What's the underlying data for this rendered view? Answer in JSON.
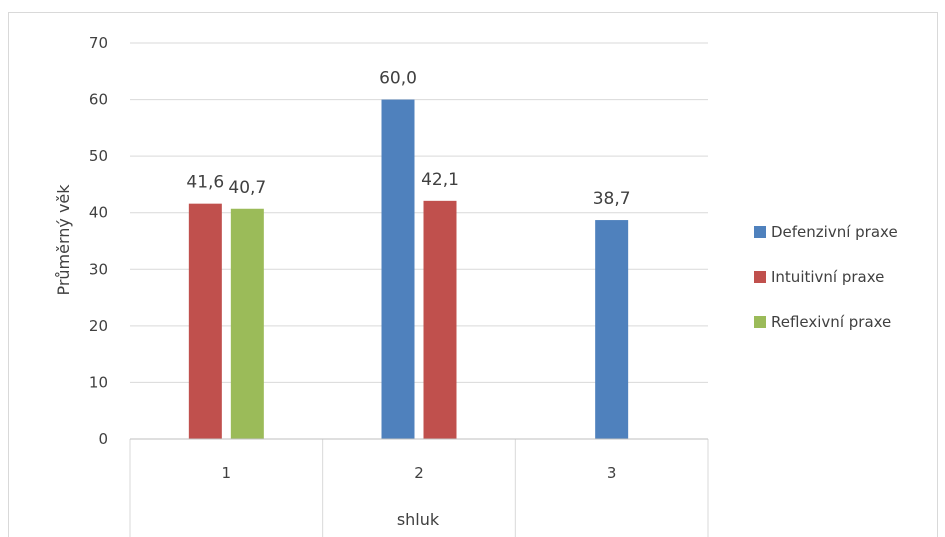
{
  "chart_data": {
    "type": "bar",
    "categories": [
      "1",
      "2",
      "3"
    ],
    "series": [
      {
        "name": "Defenzivní praxe",
        "values": [
          null,
          60.0,
          38.7
        ],
        "labels": [
          "",
          "60,0",
          "38,7"
        ],
        "color": "#4f81bd"
      },
      {
        "name": "Intuitivní praxe",
        "values": [
          41.6,
          42.1,
          null
        ],
        "labels": [
          "41,6",
          "42,1",
          ""
        ],
        "color": "#c0504d"
      },
      {
        "name": "Reflexivní praxe",
        "values": [
          40.7,
          null,
          null
        ],
        "labels": [
          "40,7",
          "",
          ""
        ],
        "color": "#9bbb59"
      }
    ],
    "title": "",
    "xlabel": "shluk",
    "ylabel": "Průměrný věk",
    "ylim": [
      0,
      70
    ],
    "yticks": [
      "0",
      "10",
      "20",
      "30",
      "40",
      "50",
      "60",
      "70"
    ],
    "grid": true,
    "legend": "right"
  }
}
